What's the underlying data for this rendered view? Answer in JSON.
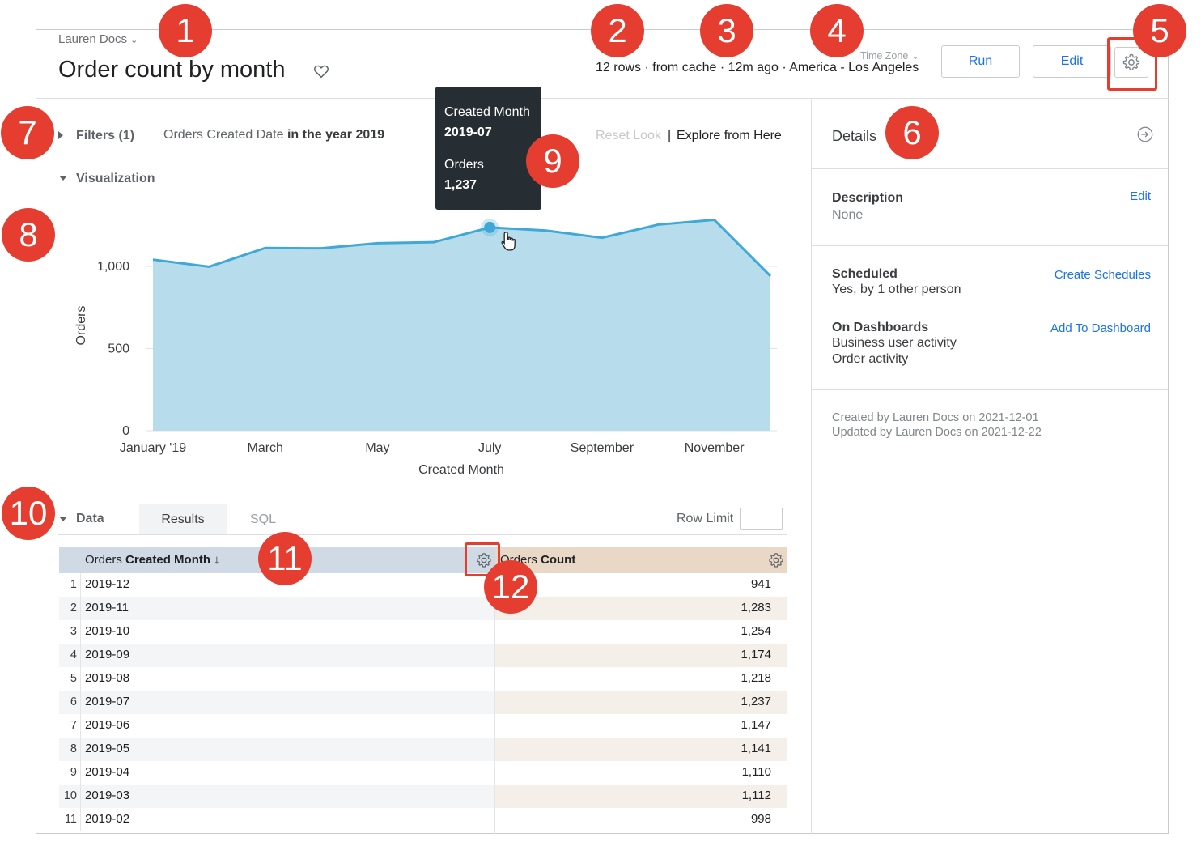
{
  "header": {
    "owner": "Lauren Docs",
    "title": "Order count by month",
    "meta": "12 rows · from cache · 12m ago · America - Los Angeles",
    "timezone_label": "Time Zone",
    "run_label": "Run",
    "edit_label": "Edit"
  },
  "filters": {
    "label": "Filters (1)",
    "desc_prefix": "Orders Created Date",
    "desc_bold": "in the year 2019",
    "reset_label": "Reset Look",
    "separator": "|",
    "explore_label": "Explore from Here"
  },
  "visualization": {
    "label": "Visualization"
  },
  "tooltip": {
    "label1": "Created Month",
    "value1": "2019-07",
    "label2": "Orders",
    "value2": "1,237"
  },
  "chart_data": {
    "type": "area",
    "x": [
      "2019-01",
      "2019-02",
      "2019-03",
      "2019-04",
      "2019-05",
      "2019-06",
      "2019-07",
      "2019-08",
      "2019-09",
      "2019-10",
      "2019-11",
      "2019-12"
    ],
    "values": [
      1041,
      998,
      1112,
      1110,
      1141,
      1147,
      1237,
      1218,
      1174,
      1254,
      1283,
      941
    ],
    "xtick_labels": [
      "January '19",
      "March",
      "May",
      "July",
      "September",
      "November"
    ],
    "ytick_labels": [
      "0",
      "500",
      "1,000"
    ],
    "yticks": [
      0,
      500,
      1000
    ],
    "xlabel": "Created Month",
    "ylabel": "Orders",
    "ylim": [
      0,
      1400
    ],
    "highlight_index": 6,
    "line_color": "#3fa8d5",
    "fill_color": "#b7dded",
    "grid": true
  },
  "data_section": {
    "label": "Data",
    "tab_results": "Results",
    "tab_sql": "SQL",
    "row_limit_label": "Row Limit",
    "row_limit_value": ""
  },
  "table": {
    "col1_prefix": "Orders",
    "col1_bold": "Created Month ↓",
    "col2_prefix": "Orders",
    "col2_bold": "Count",
    "rows": [
      {
        "n": "1",
        "month": "2019-12",
        "count": "941"
      },
      {
        "n": "2",
        "month": "2019-11",
        "count": "1,283"
      },
      {
        "n": "3",
        "month": "2019-10",
        "count": "1,254"
      },
      {
        "n": "4",
        "month": "2019-09",
        "count": "1,174"
      },
      {
        "n": "5",
        "month": "2019-08",
        "count": "1,218"
      },
      {
        "n": "6",
        "month": "2019-07",
        "count": "1,237"
      },
      {
        "n": "7",
        "month": "2019-06",
        "count": "1,147"
      },
      {
        "n": "8",
        "month": "2019-05",
        "count": "1,141"
      },
      {
        "n": "9",
        "month": "2019-04",
        "count": "1,110"
      },
      {
        "n": "10",
        "month": "2019-03",
        "count": "1,112"
      },
      {
        "n": "11",
        "month": "2019-02",
        "count": "998"
      }
    ]
  },
  "details": {
    "title": "Details",
    "description_label": "Description",
    "description_value": "None",
    "description_edit": "Edit",
    "scheduled_label": "Scheduled",
    "scheduled_value": "Yes, by 1 other person",
    "create_schedules": "Create Schedules",
    "dashboards_label": "On Dashboards",
    "dashboards": [
      "Business user activity",
      "Order activity"
    ],
    "add_to_dashboard": "Add To Dashboard",
    "created": "Created by Lauren Docs on 2021-12-01",
    "updated": "Updated by Lauren Docs on 2021-12-22"
  },
  "callouts": [
    "1",
    "2",
    "3",
    "4",
    "5",
    "6",
    "7",
    "8",
    "9",
    "10",
    "11",
    "12"
  ],
  "colors": {
    "callout": "#e53e30",
    "accent": "#1a73e8"
  },
  "icons": [
    "chevron-down-icon",
    "heart-icon",
    "gear-icon",
    "expand-panel-icon",
    "cursor-hand-icon"
  ]
}
